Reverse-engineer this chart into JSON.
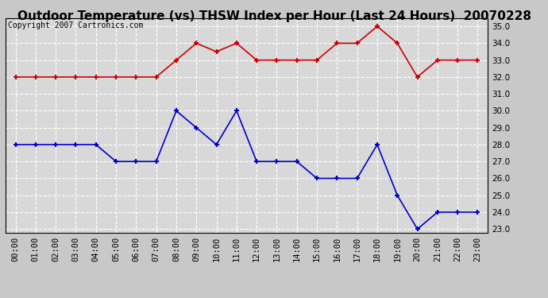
{
  "title": "Outdoor Temperature (vs) THSW Index per Hour (Last 24 Hours)  20070228",
  "copyright": "Copyright 2007 Cartronics.com",
  "hours": [
    "00:00",
    "01:00",
    "02:00",
    "03:00",
    "04:00",
    "05:00",
    "06:00",
    "07:00",
    "08:00",
    "09:00",
    "10:00",
    "11:00",
    "12:00",
    "13:00",
    "14:00",
    "15:00",
    "16:00",
    "17:00",
    "18:00",
    "19:00",
    "20:00",
    "21:00",
    "22:00",
    "23:00"
  ],
  "blue_data": [
    28.0,
    28.0,
    28.0,
    28.0,
    28.0,
    27.0,
    27.0,
    27.0,
    30.0,
    29.0,
    28.0,
    30.0,
    27.0,
    27.0,
    27.0,
    26.0,
    26.0,
    26.0,
    28.0,
    25.0,
    23.0,
    24.0,
    24.0,
    24.0
  ],
  "red_data": [
    32.0,
    32.0,
    32.0,
    32.0,
    32.0,
    32.0,
    32.0,
    32.0,
    33.0,
    34.0,
    33.5,
    34.0,
    33.0,
    33.0,
    33.0,
    33.0,
    34.0,
    34.0,
    35.0,
    34.0,
    32.0,
    33.0,
    33.0,
    33.0
  ],
  "ylim_min": 22.8,
  "ylim_max": 35.5,
  "yticks": [
    23.0,
    24.0,
    25.0,
    26.0,
    27.0,
    28.0,
    29.0,
    30.0,
    31.0,
    32.0,
    33.0,
    34.0,
    35.0
  ],
  "blue_color": "#0000cc",
  "red_color": "#cc0000",
  "bg_color": "#c8c8c8",
  "plot_bg_color": "#d8d8d8",
  "grid_color": "#ffffff",
  "title_fontsize": 11,
  "copyright_fontsize": 7,
  "tick_fontsize": 7.5
}
